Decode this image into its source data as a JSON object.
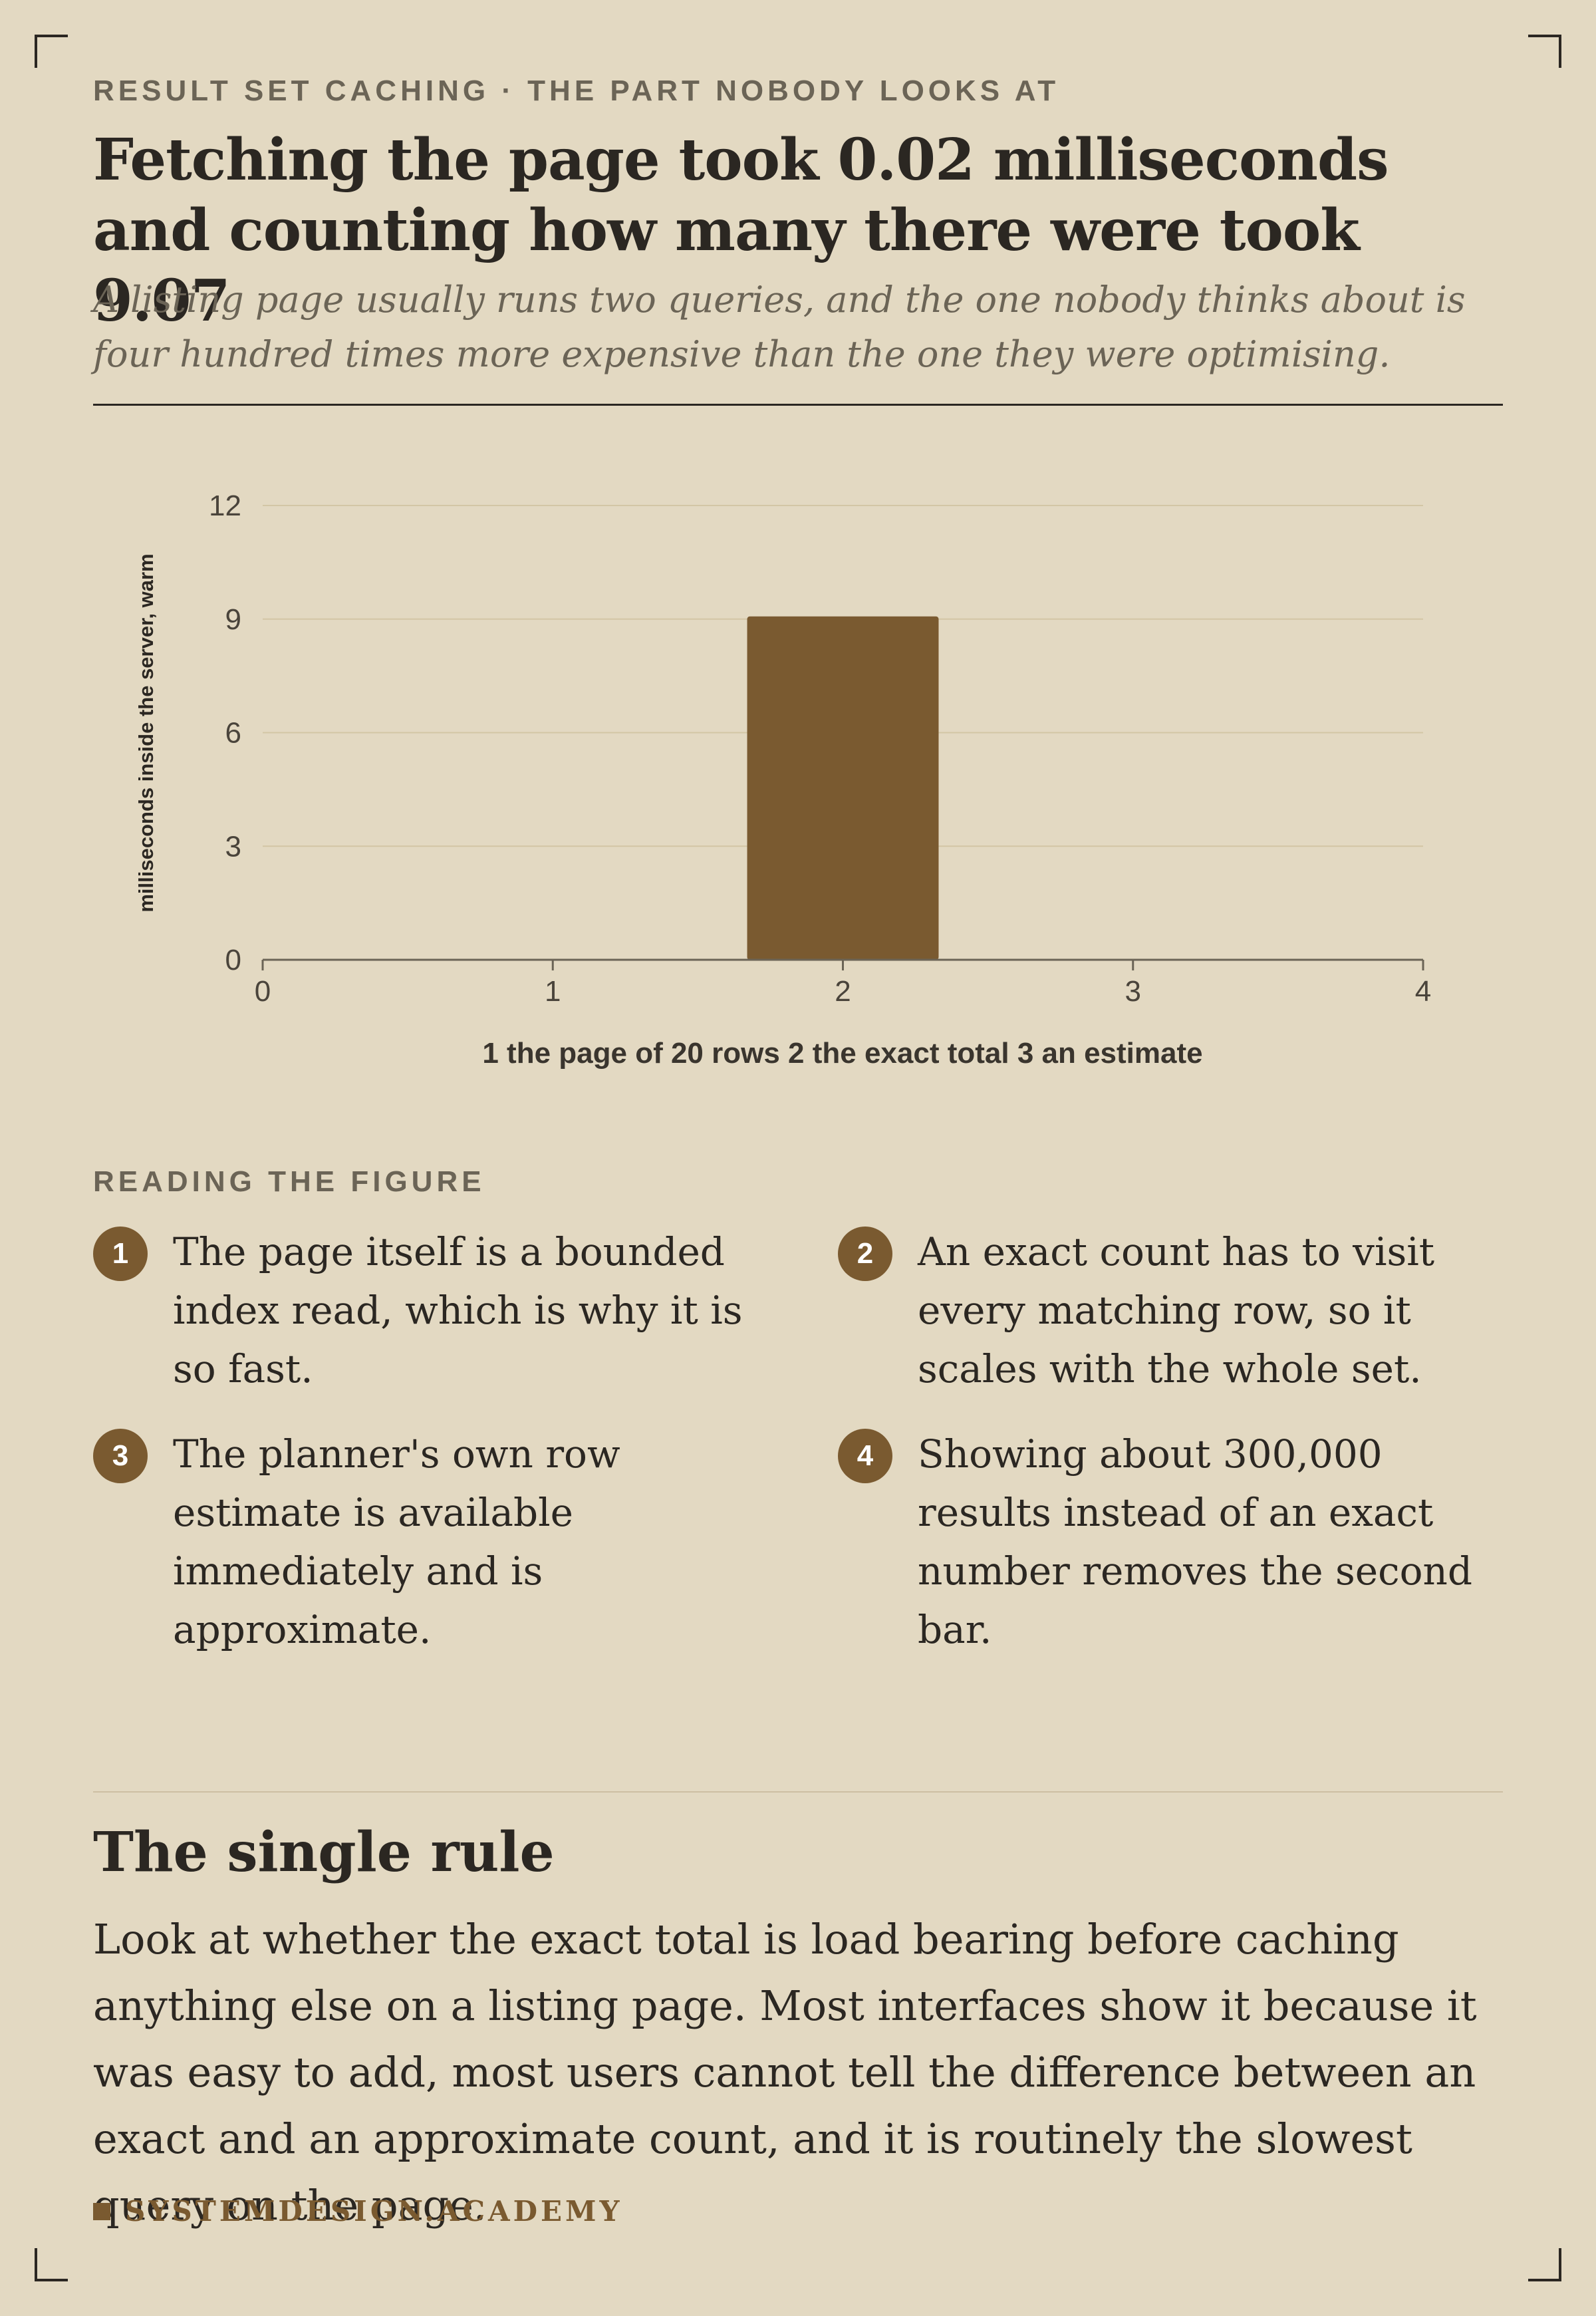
{
  "header": {
    "kicker": "RESULT SET CACHING · THE PART NOBODY LOOKS AT",
    "title": "Fetching the page took 0.02 milliseconds and counting how many there were took 9.07",
    "subtitle": "A listing page usually runs two queries, and the one nobody thinks about is four hundred times more expensive than the one they were optimising."
  },
  "chart_data": {
    "type": "bar",
    "x": [
      1,
      2,
      3
    ],
    "values": [
      0.02,
      9.07,
      0.01
    ],
    "xlabel": "1 the page of 20 rows 2 the exact total 3 an estimate",
    "ylabel": "milliseconds inside the server, warm",
    "xlim": [
      0,
      4
    ],
    "ylim": [
      0,
      12
    ],
    "xticks": [
      "0",
      "1",
      "2",
      "3",
      "4"
    ],
    "yticks": [
      "0",
      "3",
      "6",
      "9",
      "12"
    ],
    "grid": true,
    "bar_color": "#7a5a30"
  },
  "reading": {
    "heading": "READING THE FIGURE",
    "notes": [
      {
        "num": "1",
        "text": "The page itself is a bounded index read, which is why it is so fast."
      },
      {
        "num": "2",
        "text": "An exact count has to visit every matching row, so it scales with the whole set."
      },
      {
        "num": "3",
        "text": "The planner's own row estimate is available immediately and is approximate."
      },
      {
        "num": "4",
        "text": "Showing about 300,000 results instead of an exact number removes the second bar."
      }
    ]
  },
  "rule": {
    "title": "The single rule",
    "body": "Look at whether the exact total is load bearing before caching anything else on a listing page. Most interfaces show it because it was easy to add, most users cannot tell the difference between an exact and an approximate count, and it is routinely the slowest query on the page."
  },
  "footer": {
    "brand": "SYSTEMDESIGN.ACADEMY"
  }
}
